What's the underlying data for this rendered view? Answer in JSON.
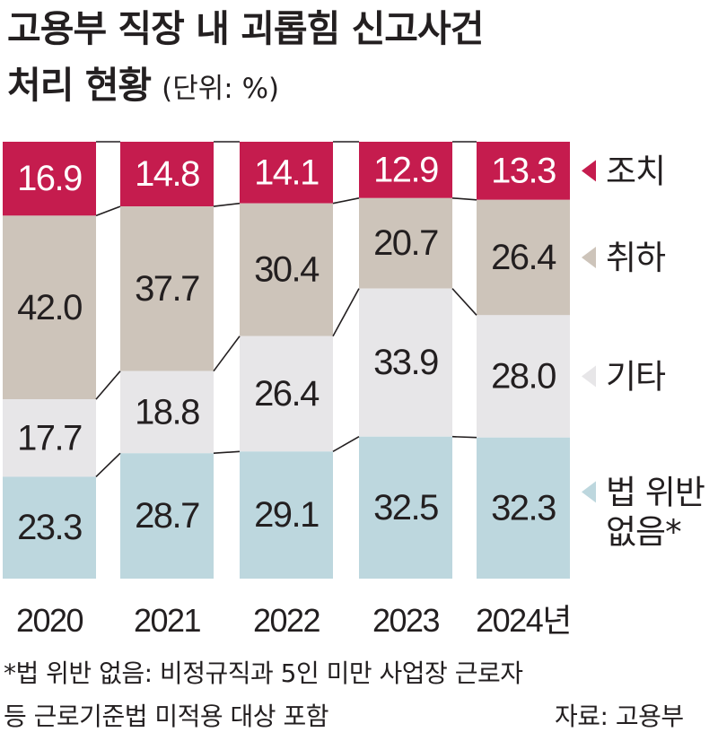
{
  "title_line1": "고용부 직장 내 괴롭힘 신고사건",
  "title_line2": "처리 현황",
  "unit": "(단위: %)",
  "footnote_line1": "*법 위반 없음: 비정규직과 5인 미만 사업장 근로자",
  "footnote_line2": "등 근로기준법 미적용 대상 포함",
  "source": "자료: 고용부",
  "colors": {
    "조치": "#c51c4e",
    "취하": "#cdc4ba",
    "기타": "#e7e6e8",
    "법 위반 없음": "#bdd7de",
    "text_dark": "#231f20",
    "text_light": "#ffffff"
  },
  "chart_data": {
    "type": "bar",
    "stacked": true,
    "normalized": true,
    "categories": [
      "2020",
      "2021",
      "2022",
      "2023",
      "2024년"
    ],
    "series": [
      {
        "name": "조치",
        "values": [
          16.9,
          14.8,
          14.1,
          12.9,
          13.3
        ]
      },
      {
        "name": "취하",
        "values": [
          42.0,
          37.7,
          30.4,
          20.7,
          26.4
        ]
      },
      {
        "name": "기타",
        "values": [
          17.7,
          18.8,
          26.4,
          33.9,
          28.0
        ]
      },
      {
        "name": "법 위반 없음",
        "values": [
          23.3,
          28.7,
          29.1,
          32.5,
          32.3
        ]
      }
    ],
    "value_labels": [
      [
        "16.9",
        "14.8",
        "14.1",
        "12.9",
        "13.3"
      ],
      [
        "42.0",
        "37.7",
        "30.4",
        "20.7",
        "26.4"
      ],
      [
        "17.7",
        "18.8",
        "26.4",
        "33.9",
        "28.0"
      ],
      [
        "23.3",
        "28.7",
        "29.1",
        "32.5",
        "32.3"
      ]
    ],
    "legend": [
      {
        "label_lines": [
          "조치"
        ]
      },
      {
        "label_lines": [
          "취하"
        ]
      },
      {
        "label_lines": [
          "기타"
        ]
      },
      {
        "label_lines": [
          "법 위반",
          "없음*"
        ]
      }
    ],
    "legend_position": "right",
    "ylim": [
      0,
      100
    ],
    "grid": false
  }
}
